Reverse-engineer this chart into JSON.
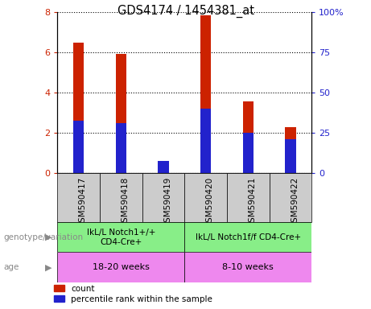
{
  "title": "GDS4174 / 1454381_at",
  "samples": [
    "GSM590417",
    "GSM590418",
    "GSM590419",
    "GSM590420",
    "GSM590421",
    "GSM590422"
  ],
  "count_values": [
    6.5,
    5.95,
    0.35,
    7.85,
    3.55,
    2.3
  ],
  "percentile_values": [
    2.6,
    2.5,
    0.6,
    3.2,
    2.0,
    1.7
  ],
  "bar_color": "#cc2200",
  "percentile_color": "#2222cc",
  "ylim_left": [
    0,
    8
  ],
  "ylim_right": [
    0,
    100
  ],
  "yticks_left": [
    0,
    2,
    4,
    6,
    8
  ],
  "yticks_right": [
    0,
    25,
    50,
    75,
    100
  ],
  "ytick_labels_right": [
    "0",
    "25",
    "50",
    "75",
    "100%"
  ],
  "genotype_group1": "IkL/L Notch1+/+\nCD4-Cre+",
  "genotype_group2": "IkL/L Notch1f/f CD4-Cre+",
  "age_group1": "18-20 weeks",
  "age_group2": "8-10 weeks",
  "genotype_color": "#88ee88",
  "age_color": "#ee88ee",
  "sample_bg_color": "#cccccc",
  "red_bar_width": 0.25,
  "blue_bar_width": 0.25,
  "label_count": "count",
  "label_percentile": "percentile rank within the sample",
  "genotype_label": "genotype/variation",
  "age_label": "age",
  "left_tick_color": "#cc2200",
  "right_tick_color": "#2222cc"
}
